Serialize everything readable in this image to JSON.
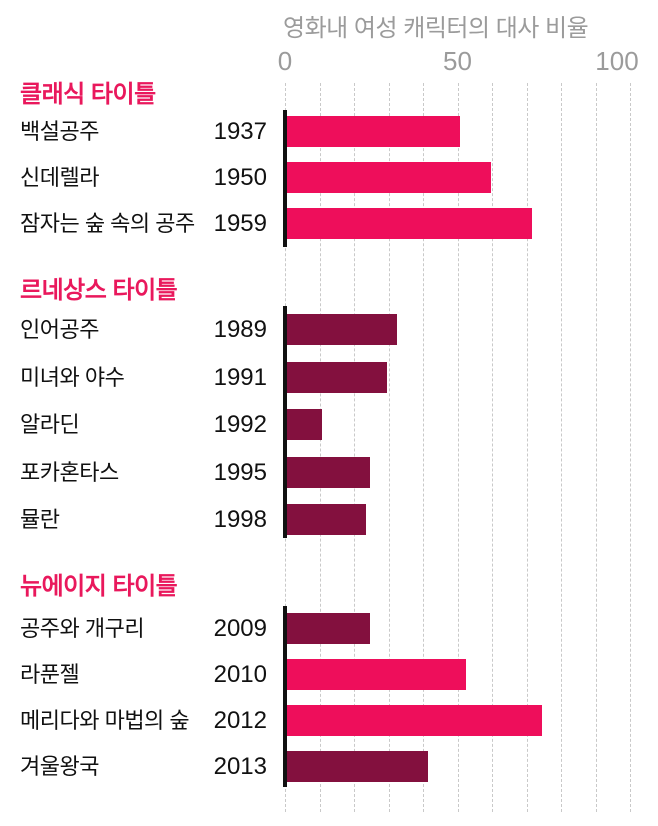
{
  "title": "영화내 여성 캐릭터의 대사 비율",
  "colors": {
    "pink": "#ee0e5b",
    "dark": "#83103e",
    "section_header": "#e9185c",
    "axis_text": "#9b9b9b",
    "grid": "#c9c9c9",
    "axis_line": "#111111",
    "label_text": "#111111",
    "background": "#ffffff"
  },
  "axis": {
    "min": 0,
    "max": 100,
    "tick_labels": [
      "0",
      "50",
      "100"
    ],
    "tick_values": [
      0,
      50,
      100
    ],
    "grid_step": 10
  },
  "chart_data": {
    "type": "bar",
    "orientation": "horizontal",
    "title": "영화내 여성 캐릭터의 대사 비율",
    "xlabel": "",
    "ylabel": "",
    "xlim": [
      0,
      100
    ],
    "unit": "%",
    "grid": "dashed-vertical",
    "legend": "none",
    "sections": [
      {
        "label": "클래식 타이틀",
        "rows": [
          {
            "movie": "백설공주",
            "year": "1937",
            "value": 50,
            "color": "pink"
          },
          {
            "movie": "신데렐라",
            "year": "1950",
            "value": 59,
            "color": "pink"
          },
          {
            "movie": "잠자는 숲 속의 공주",
            "year": "1959",
            "value": 71,
            "color": "pink"
          }
        ]
      },
      {
        "label": "르네상스 타이틀",
        "rows": [
          {
            "movie": "인어공주",
            "year": "1989",
            "value": 32,
            "color": "dark"
          },
          {
            "movie": "미녀와 야수",
            "year": "1991",
            "value": 29,
            "color": "dark"
          },
          {
            "movie": "알라딘",
            "year": "1992",
            "value": 10,
            "color": "dark"
          },
          {
            "movie": "포카혼타스",
            "year": "1995",
            "value": 24,
            "color": "dark"
          },
          {
            "movie": "뮬란",
            "year": "1998",
            "value": 23,
            "color": "dark"
          }
        ]
      },
      {
        "label": "뉴에이지 타이틀",
        "rows": [
          {
            "movie": "공주와 개구리",
            "year": "2009",
            "value": 24,
            "color": "dark"
          },
          {
            "movie": "라푼젤",
            "year": "2010",
            "value": 52,
            "color": "pink"
          },
          {
            "movie": "메리다와 마법의 숲",
            "year": "2012",
            "value": 74,
            "color": "pink"
          },
          {
            "movie": "겨울왕국",
            "year": "2013",
            "value": 41,
            "color": "dark"
          }
        ]
      }
    ]
  }
}
